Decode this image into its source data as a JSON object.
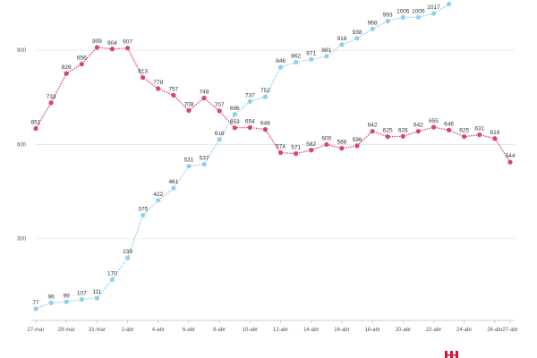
{
  "chart_data": {
    "type": "line",
    "x": [
      "27-mar",
      "28-mar",
      "29-mar",
      "30-mar",
      "31-mar",
      "1-abr",
      "2-abr",
      "3-abr",
      "4-abr",
      "5-abr",
      "6-abr",
      "7-abr",
      "8-abr",
      "9-abr",
      "10-abr",
      "11-abr",
      "12-abr",
      "13-abr",
      "14-abr",
      "15-abr",
      "16-abr",
      "17-abr",
      "18-abr",
      "19-abr",
      "20-abr",
      "21-abr",
      "22-abr",
      "23-abr",
      "24-abr",
      "25-abr",
      "26-abr",
      "27-abr"
    ],
    "x_tick_labels": [
      "27-mar",
      "29-mar",
      "31-mar",
      "2-abr",
      "4-abr",
      "6-abr",
      "8-abr",
      "10-abr",
      "12-abr",
      "14-abr",
      "16-abr",
      "18-abr",
      "20-abr",
      "22-abr",
      "24-abr",
      "26-abr",
      "27-abr"
    ],
    "y_ticks": [
      300,
      600,
      900
    ],
    "ylim": [
      40,
      1060
    ],
    "grid": true,
    "series": [
      {
        "color": "#d94472",
        "values": [
          651,
          733,
          826,
          856,
          909,
          904,
          907,
          813,
          778,
          757,
          708,
          748,
          707,
          653,
          654,
          648,
          574,
          571,
          582,
          600,
          588,
          596,
          642,
          625,
          626,
          642,
          655,
          646,
          625,
          631,
          619,
          544
        ]
      },
      {
        "color": "#8fd0ee",
        "values": [
          77,
          96,
          99,
          107,
          111,
          170,
          239,
          375,
          422,
          461,
          531,
          537,
          616,
          696,
          737,
          752,
          846,
          862,
          871,
          881,
          918,
          938,
          968,
          993,
          1005,
          1005,
          1017,
          1047,
          null,
          null,
          null,
          null
        ]
      }
    ],
    "logo_color": "#d4143a"
  }
}
